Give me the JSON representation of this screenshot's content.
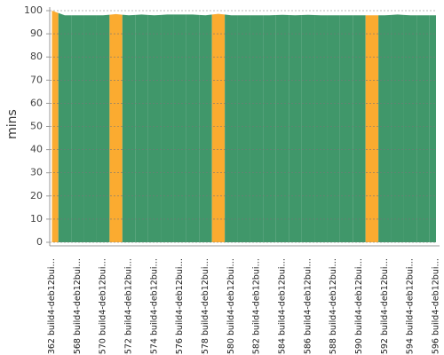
{
  "chart_data": {
    "type": "area",
    "y_label": "mins",
    "categories": [
      "#362 build4-deb12bui…",
      null,
      "#568 build4-deb12bui…",
      null,
      "#570 build4-deb12bui…",
      null,
      "#572 build4-deb12bui…",
      null,
      "#574 build4-deb12bui…",
      null,
      "#576 build4-deb12bui…",
      null,
      "#578 build4-deb12bui…",
      null,
      "#580 build4-deb12bui…",
      null,
      "#582 build4-deb12bui…",
      null,
      "#584 build4-deb12bui…",
      null,
      "#586 build4-deb12bui…",
      null,
      "#588 build4-deb12bui…",
      null,
      "#590 build4-deb12bui…",
      null,
      "#592 build4-deb12bui…",
      null,
      "#594 build4-deb12bui…",
      null,
      "#596 build4-deb12bui…"
    ],
    "values": [
      100,
      98,
      98,
      98,
      98,
      98.5,
      98,
      98.3,
      98,
      98.3,
      98.3,
      98.3,
      98,
      98.6,
      98,
      98,
      98,
      98,
      98.2,
      98,
      98.2,
      98,
      98,
      98,
      98,
      98,
      98,
      98.3,
      98,
      98,
      98
    ],
    "colors": [
      "#fbab30",
      "#40976a",
      "#40976a",
      "#40976a",
      "#40976a",
      "#fbab30",
      "#40976a",
      "#40976a",
      "#40976a",
      "#40976a",
      "#40976a",
      "#40976a",
      "#40976a",
      "#fbab30",
      "#40976a",
      "#40976a",
      "#40976a",
      "#40976a",
      "#40976a",
      "#40976a",
      "#40976a",
      "#40976a",
      "#40976a",
      "#40976a",
      "#40976a",
      "#fbab30",
      "#40976a",
      "#40976a",
      "#40976a",
      "#40976a",
      "#40976a"
    ],
    "ylim": [
      0,
      100
    ],
    "yticks": [
      0,
      10,
      20,
      30,
      40,
      50,
      60,
      70,
      80,
      90,
      100
    ],
    "grid": true
  }
}
